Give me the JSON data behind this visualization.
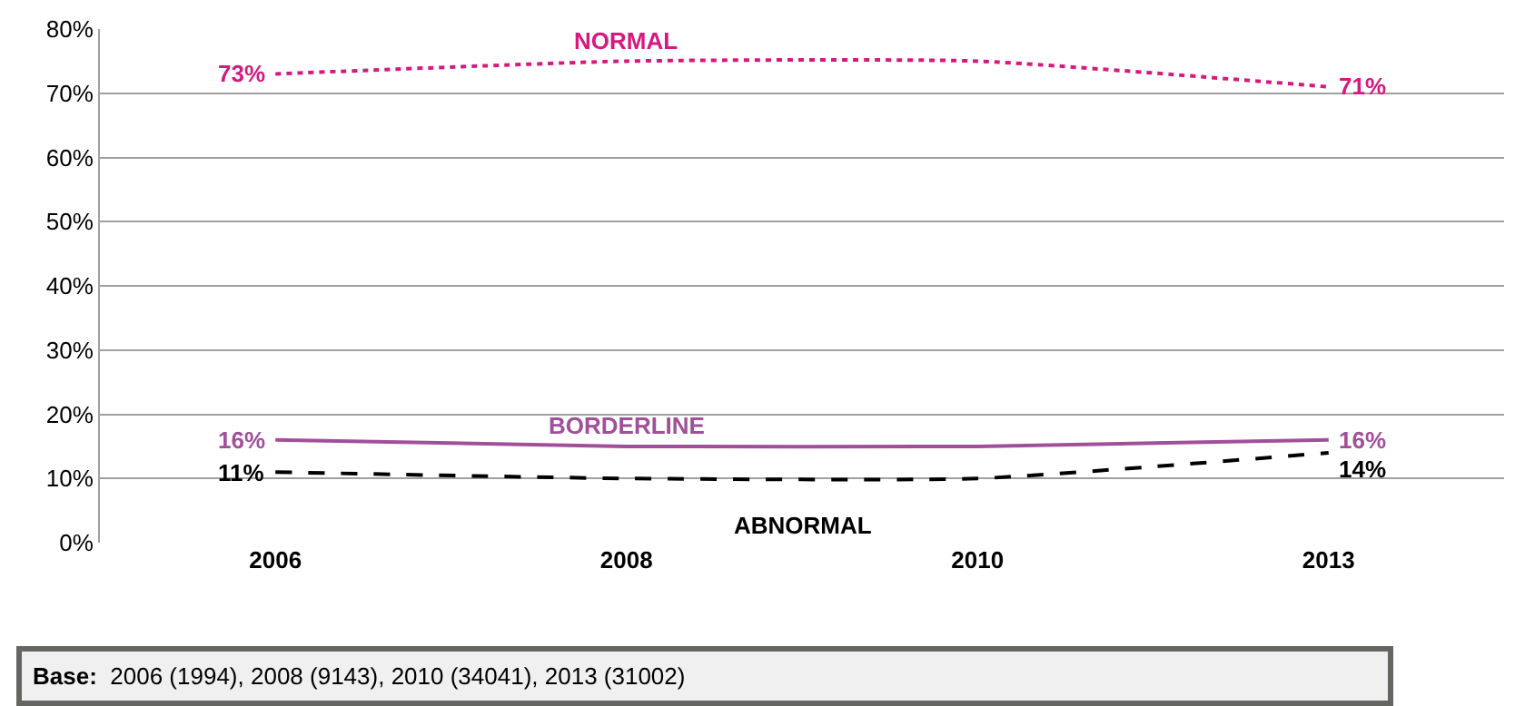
{
  "chart_data": {
    "type": "line",
    "categories": [
      "2006",
      "2008",
      "2010",
      "2013"
    ],
    "series": [
      {
        "name": "NORMAL",
        "color": "#d6197f",
        "line_style": "dotted",
        "values": [
          73,
          75,
          75,
          71
        ],
        "value_labels": [
          "73%",
          null,
          null,
          "71%"
        ]
      },
      {
        "name": "BORDERLINE",
        "color": "#a0509a",
        "line_style": "solid",
        "values": [
          16,
          15,
          15,
          16
        ],
        "value_labels": [
          "16%",
          null,
          null,
          "16%"
        ]
      },
      {
        "name": "ABNORMAL",
        "color": "#000000",
        "line_style": "dashed",
        "values": [
          11,
          10,
          10,
          14
        ],
        "value_labels": [
          "11%",
          null,
          null,
          "14%"
        ]
      }
    ],
    "ylim": [
      0,
      80
    ],
    "yticks": [
      {
        "value": 0,
        "label": "0%"
      },
      {
        "value": 10,
        "label": "10%"
      },
      {
        "value": 20,
        "label": "20%"
      },
      {
        "value": 30,
        "label": "30%"
      },
      {
        "value": 40,
        "label": "40%"
      },
      {
        "value": 50,
        "label": "50%"
      },
      {
        "value": 60,
        "label": "60%"
      },
      {
        "value": 70,
        "label": "70%"
      },
      {
        "value": 80,
        "label": "80%"
      }
    ],
    "grid": "y",
    "legend": false,
    "marker": "none",
    "annotations": [
      "Base:  2006 (1994), 2008 (9143), 2010 (34041), 2013 (31002)"
    ]
  }
}
